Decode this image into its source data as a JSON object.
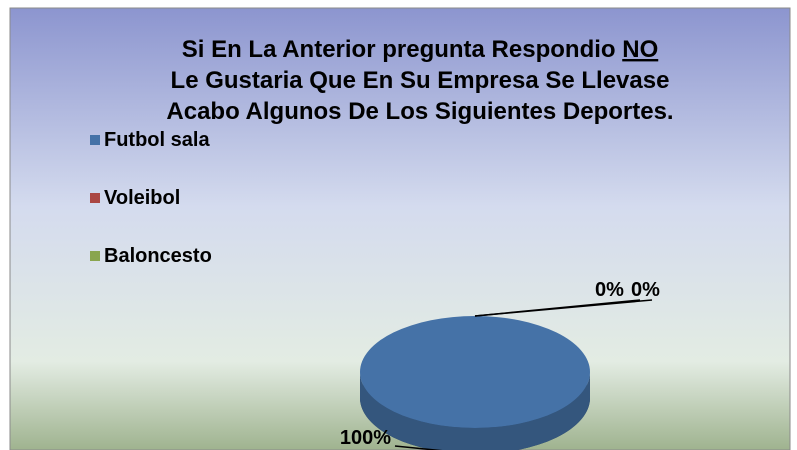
{
  "chart_data": {
    "type": "pie",
    "title_lines": [
      "Si En La Anterior pregunta Respondio",
      "Le Gustaria Que En Su Empresa Se Llevase",
      "Acabo Algunos De Los Siguientes Deportes."
    ],
    "title_emphasis": "NO",
    "categories": [
      "Futbol sala",
      "Voleibol",
      "Baloncesto"
    ],
    "values": [
      100,
      0,
      0
    ],
    "value_labels": [
      "100%",
      "0%",
      "0%"
    ],
    "colors": [
      "#4572a7",
      "#aa4643",
      "#89a54e"
    ],
    "legend": "left"
  }
}
